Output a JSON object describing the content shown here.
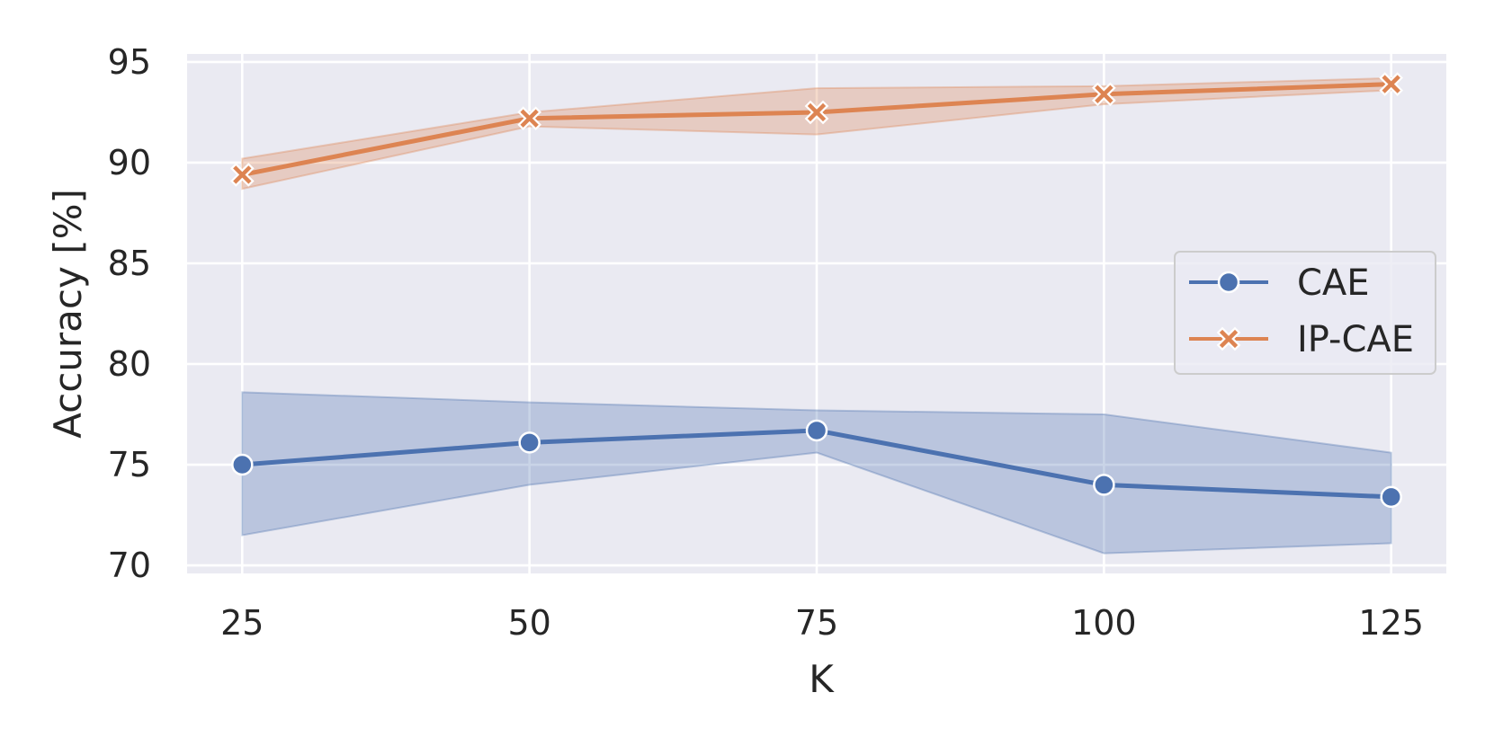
{
  "chart_data": {
    "type": "line",
    "title": "",
    "xlabel": "K",
    "ylabel": "Accuracy [%]",
    "x": [
      25,
      50,
      75,
      100,
      125
    ],
    "xlim": [
      20.2,
      129.8
    ],
    "ylim": [
      69.6,
      95.4
    ],
    "xticks": [
      25,
      50,
      75,
      100,
      125
    ],
    "yticks": [
      70,
      75,
      80,
      85,
      90,
      95
    ],
    "grid": true,
    "legend_position": "center-right",
    "series": [
      {
        "name": "CAE",
        "color": "#4c72b0",
        "marker": "circle",
        "values": [
          75.0,
          76.1,
          76.7,
          74.0,
          73.4
        ],
        "lower": [
          71.5,
          74.0,
          75.6,
          70.6,
          71.1
        ],
        "upper": [
          78.6,
          78.1,
          77.7,
          77.5,
          75.6
        ]
      },
      {
        "name": "IP-CAE",
        "color": "#dd8452",
        "marker": "x",
        "values": [
          89.4,
          92.2,
          92.5,
          93.4,
          93.9
        ],
        "lower": [
          88.7,
          91.8,
          91.4,
          92.9,
          93.6
        ],
        "upper": [
          90.2,
          92.5,
          93.7,
          93.8,
          94.2
        ]
      }
    ]
  }
}
